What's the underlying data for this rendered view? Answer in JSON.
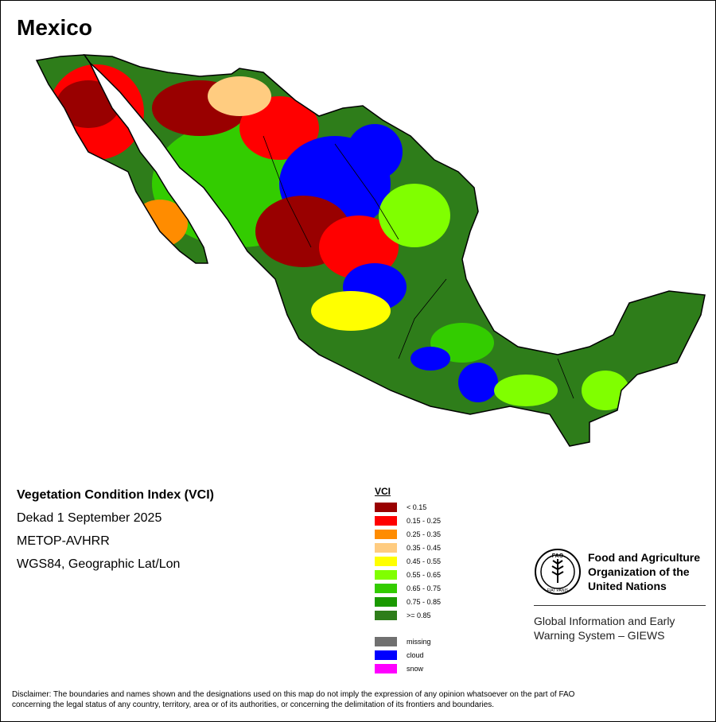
{
  "map": {
    "title": "Mexico",
    "info": {
      "index_name": "Vegetation Condition Index (VCI)",
      "period": "Dekad 1 September 2025",
      "sensor": "METOP-AVHRR",
      "projection": "WGS84, Geographic Lat/Lon"
    },
    "legend": {
      "title": "VCI",
      "classes": [
        {
          "label": "< 0.15",
          "color": "#990000"
        },
        {
          "label": "0.15 - 0.25",
          "color": "#ff0000"
        },
        {
          "label": "0.25 - 0.35",
          "color": "#ff8c00"
        },
        {
          "label": "0.35 - 0.45",
          "color": "#ffcc80"
        },
        {
          "label": "0.45 - 0.55",
          "color": "#ffff00"
        },
        {
          "label": "0.55 - 0.65",
          "color": "#80ff00"
        },
        {
          "label": "0.65 - 0.75",
          "color": "#33cc00"
        },
        {
          "label": "0.75 - 0.85",
          "color": "#1a9900"
        },
        {
          "label": ">= 0.85",
          "color": "#2e7d1a"
        }
      ],
      "special": [
        {
          "label": "missing",
          "color": "#707070"
        },
        {
          "label": "cloud",
          "color": "#0000ff"
        },
        {
          "label": "snow",
          "color": "#ff00ff"
        }
      ]
    },
    "organization": {
      "name_line1": "Food and Agriculture",
      "name_line2": "Organization of the",
      "name_line3": "United Nations",
      "logo_text": "FIAT PANIS",
      "logo_letters": "FAO",
      "program_line1": "Global Information and Early",
      "program_line2": "Warning System – GIEWS"
    },
    "disclaimer_line1": "Disclaimer: The boundaries and names shown and the designations used on this map do not imply the expression of any opinion whatsoever on the part of FAO",
    "disclaimer_line2": "concerning the legal status of any country, territory, area or of its authorities, or concerning the delimitation of its frontiers and boundaries."
  }
}
